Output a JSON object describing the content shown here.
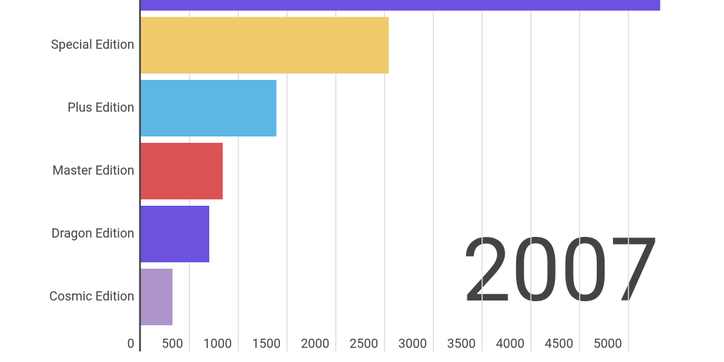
{
  "chart_data": {
    "type": "bar",
    "orientation": "horizontal",
    "categories": [
      null,
      "Special Edition",
      "Plus Edition",
      "Master Edition",
      "Dragon Edition",
      "Cosmic Edition"
    ],
    "values": [
      5326,
      2543,
      1391,
      841,
      703,
      326
    ],
    "colors": [
      "#6c52de",
      "#efcb6c",
      "#5db7e5",
      "#dc5355",
      "#6c52de",
      "#ad95cb"
    ],
    "xlim": [
      0,
      5980
    ],
    "xticks": [
      0,
      500,
      1000,
      1500,
      2000,
      2500,
      3000,
      3500,
      4000,
      4500,
      5000
    ],
    "grid": true,
    "annotation": "2007"
  }
}
